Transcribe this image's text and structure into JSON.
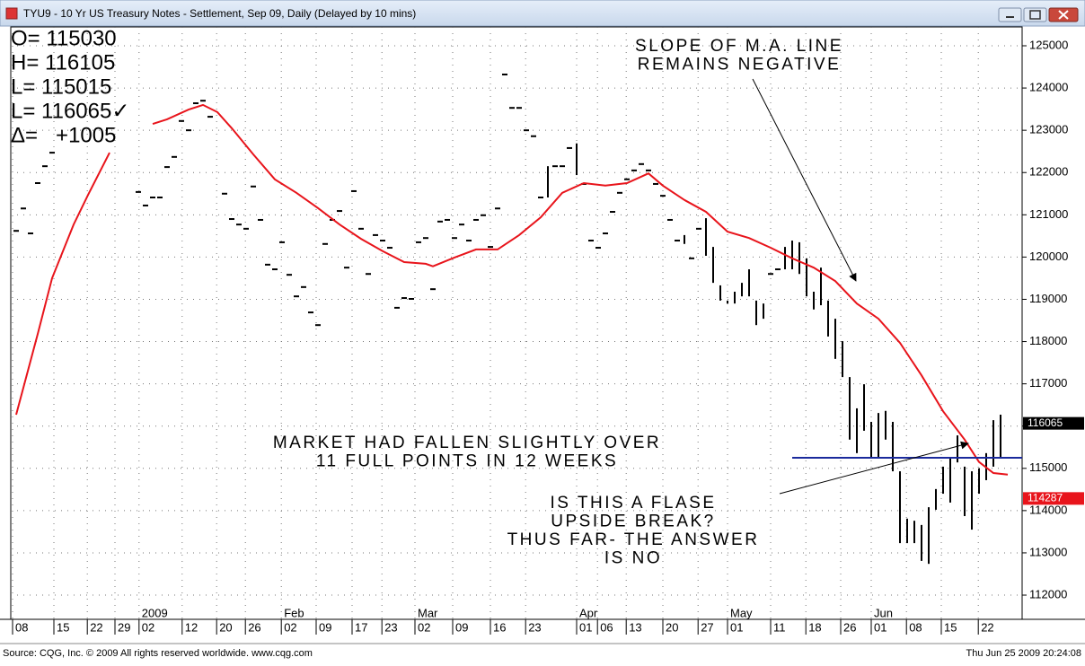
{
  "window_title": "TYU9 - 10 Yr US Treasury Notes - Settlement, Sep 09, Daily (Delayed by 10 mins)",
  "footer_left": "Source: CQG, Inc. © 2009 All rights reserved worldwide. www.cqg.com",
  "footer_right": "Thu Jun 25 2009 20:24:08",
  "chart_data": {
    "type": "ohlc",
    "info": [
      "O= 115030",
      "H= 116105",
      "L= 115015",
      "L= 116065✓",
      "Δ=   +1005"
    ],
    "annotations": [
      {
        "lines": [
          "SLOPE OF M.A. LINE",
          "REMAINS NEGATIVE"
        ]
      },
      {
        "lines": [
          "MARKET HAD FALLEN SLIGHTLY OVER",
          "11 FULL POINTS IN 12 WEEKS"
        ]
      },
      {
        "lines": [
          "IS THIS A FLASE",
          "UPSIDE BREAK?",
          "THUS FAR- THE ANSWER",
          "IS NO"
        ]
      }
    ],
    "x": [
      0,
      1,
      2,
      3,
      4,
      5,
      17,
      18,
      19,
      20,
      21,
      22,
      23,
      24,
      25,
      26,
      27,
      29,
      30,
      31,
      32,
      33,
      34,
      35,
      36,
      37,
      38,
      39,
      40,
      41,
      42,
      43,
      44,
      45,
      46,
      47,
      48,
      49,
      50,
      51,
      52,
      53,
      54,
      55,
      56,
      57,
      58,
      59,
      60,
      61,
      62,
      63,
      64,
      65,
      66,
      67,
      68,
      69,
      70,
      71,
      72,
      73,
      74,
      75,
      76,
      77,
      78,
      79,
      80,
      81,
      82,
      83,
      84,
      85,
      86,
      87,
      88,
      89,
      90,
      91,
      92,
      93,
      94,
      95,
      96,
      97,
      98,
      99,
      100,
      101,
      102,
      103,
      104,
      105,
      106,
      107,
      108,
      109,
      110,
      111,
      112,
      113,
      114,
      115,
      116,
      117,
      118,
      119,
      120,
      121,
      122,
      123,
      124,
      125,
      126,
      127,
      128,
      129,
      130,
      131,
      132,
      133,
      134,
      135,
      136,
      137
    ],
    "high": [
      120620,
      121150,
      120560,
      121750,
      122150,
      122470,
      121540,
      121220,
      121410,
      121410,
      122130,
      122370,
      123220,
      123000,
      123640,
      123700,
      123320,
      121500,
      120900,
      120770,
      120670,
      121670,
      120880,
      119820,
      119710,
      120350,
      119580,
      119070,
      119290,
      118690,
      118390,
      120310,
      120880,
      121090,
      119750,
      121560,
      120670,
      119600,
      120520,
      120390,
      120220,
      118800,
      119030,
      119010,
      120350,
      120450,
      119240,
      120840,
      120880,
      120450,
      120770,
      120390,
      120880,
      120990,
      120240,
      121150,
      124320,
      123530,
      123530,
      123000,
      122860,
      121410,
      122150,
      122150,
      122150,
      122580,
      122690,
      121730,
      120390,
      120220,
      120560,
      121070,
      121520,
      121840,
      122050,
      122200,
      122050,
      121730,
      121450,
      120880,
      120390,
      120520,
      119970,
      120670,
      120920,
      120240,
      119330,
      118970,
      119180,
      119390,
      119710,
      118970,
      118900,
      119600,
      119710,
      120240,
      120390,
      120350,
      119970,
      119180,
      119750,
      118970,
      118540,
      118010,
      117160,
      116420,
      116990,
      116100,
      116310,
      116360,
      116100,
      114930,
      113810,
      113760,
      113660,
      114080,
      114510,
      115040,
      115250,
      115780,
      115040,
      114930,
      115000,
      115360,
      116140,
      116270
    ],
    "low": [
      120620,
      121150,
      120560,
      121750,
      122150,
      122470,
      121540,
      121220,
      121410,
      121410,
      122130,
      122370,
      123220,
      123000,
      123640,
      123700,
      123320,
      121500,
      120900,
      120770,
      120670,
      121670,
      120880,
      119820,
      119710,
      120350,
      119580,
      119070,
      119290,
      118690,
      118390,
      120310,
      120880,
      121090,
      119750,
      121560,
      120670,
      119600,
      120520,
      120390,
      120220,
      118800,
      119030,
      119010,
      120350,
      120450,
      119240,
      120840,
      120880,
      120450,
      120770,
      120390,
      120880,
      120990,
      120240,
      121150,
      124320,
      123530,
      123530,
      123000,
      122860,
      121410,
      121410,
      122150,
      122150,
      122580,
      121940,
      121730,
      120390,
      120220,
      120560,
      121070,
      121520,
      121840,
      122050,
      122200,
      122050,
      121730,
      121450,
      120880,
      120390,
      120310,
      119970,
      120670,
      120030,
      119390,
      118970,
      118900,
      118900,
      119070,
      119070,
      118390,
      118540,
      119600,
      119710,
      119710,
      119710,
      119600,
      119070,
      118760,
      118860,
      118120,
      117590,
      117160,
      115680,
      115360,
      115890,
      115250,
      115250,
      115680,
      114930,
      113230,
      113230,
      113230,
      112810,
      112740,
      114020,
      114400,
      114190,
      115140,
      113870,
      113550,
      114400,
      114720,
      115040,
      115250
    ],
    "bar_color": "#000000",
    "ma_x": [
      0,
      3,
      5,
      8,
      10,
      13,
      15,
      19,
      21,
      24,
      26,
      28,
      30,
      33,
      36,
      39,
      42,
      45,
      48,
      51,
      54,
      57,
      58,
      61,
      64,
      67,
      70,
      73,
      76,
      79,
      82,
      85,
      88,
      90,
      93,
      96,
      99,
      102,
      105,
      108,
      111,
      114,
      117,
      120,
      123,
      126,
      129,
      132,
      134,
      136,
      138
    ],
    "ma_values": [
      116270,
      118180,
      119500,
      120770,
      121470,
      122470,
      null,
      123150,
      123260,
      123490,
      123600,
      123430,
      123050,
      122430,
      121840,
      121520,
      121160,
      120770,
      120430,
      120140,
      119880,
      119840,
      119780,
      119990,
      120180,
      120180,
      120520,
      120940,
      121520,
      121750,
      121690,
      121750,
      121980,
      121690,
      121350,
      121070,
      120600,
      120450,
      120220,
      119970,
      119750,
      119430,
      118900,
      118540,
      117970,
      117200,
      116350,
      115680,
      115150,
      114890,
      114850
    ],
    "ma_color": "#e8141b",
    "level": {
      "value": 115250,
      "from": 108,
      "color": "#1a2a9c"
    },
    "last_price": 116065,
    "ma_last": 114287,
    "xlim": [
      -0.75,
      140
    ],
    "ylim": [
      111427,
      125446
    ],
    "yticks": [
      112000,
      113000,
      114000,
      115000,
      116000,
      117000,
      118000,
      119000,
      120000,
      121000,
      122000,
      123000,
      124000,
      125000
    ],
    "xticks": [
      {
        "value": -0.5,
        "label": "08"
      },
      {
        "value": 5.25,
        "label": "15"
      },
      {
        "value": 9.9,
        "label": "22"
      },
      {
        "value": 13.75,
        "label": "29"
      },
      {
        "value": 17.1,
        "label": "02"
      },
      {
        "value": 23.1,
        "label": "12"
      },
      {
        "value": 27.9,
        "label": "20"
      },
      {
        "value": 31.9,
        "label": "26"
      },
      {
        "value": 36.9,
        "label": "02"
      },
      {
        "value": 41.75,
        "label": "09"
      },
      {
        "value": 46.75,
        "label": "17"
      },
      {
        "value": 50.9,
        "label": "23"
      },
      {
        "value": 55.5,
        "label": "02"
      },
      {
        "value": 60.75,
        "label": "09"
      },
      {
        "value": 66,
        "label": "16"
      },
      {
        "value": 70.9,
        "label": "23"
      },
      {
        "value": 78,
        "label": "01"
      },
      {
        "value": 80.9,
        "label": "06"
      },
      {
        "value": 84.9,
        "label": "13"
      },
      {
        "value": 90,
        "label": "20"
      },
      {
        "value": 94.9,
        "label": "27"
      },
      {
        "value": 99,
        "label": "01"
      },
      {
        "value": 105,
        "label": "11"
      },
      {
        "value": 109.9,
        "label": "18"
      },
      {
        "value": 114.75,
        "label": "26"
      },
      {
        "value": 119,
        "label": "01"
      },
      {
        "value": 123.9,
        "label": "08"
      },
      {
        "value": 128.75,
        "label": "15"
      },
      {
        "value": 133.9,
        "label": "22"
      }
    ],
    "xmonths": [
      {
        "value": 17.1,
        "label": "2009"
      },
      {
        "value": 36.9,
        "label": "Feb"
      },
      {
        "value": 55.5,
        "label": "Mar"
      },
      {
        "value": 78,
        "label": "Apr"
      },
      {
        "value": 99,
        "label": "May"
      },
      {
        "value": 119,
        "label": "Jun"
      }
    ],
    "grid": true
  }
}
